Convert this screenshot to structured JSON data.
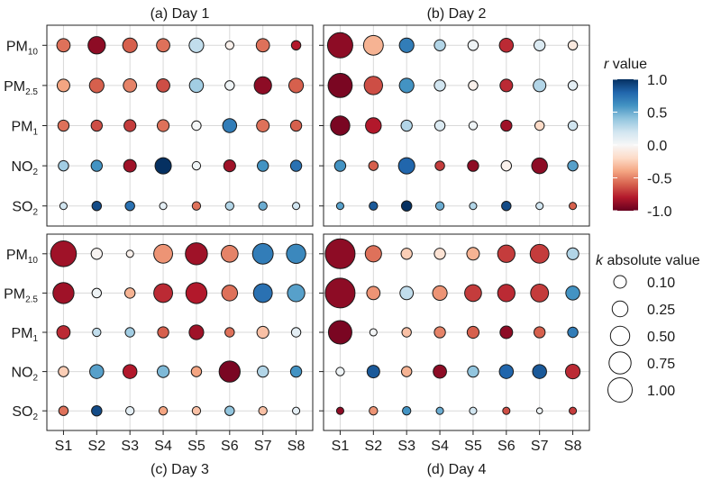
{
  "chart_data": {
    "type": "bubble-matrix",
    "rows": [
      {
        "base": "PM",
        "sub": "10"
      },
      {
        "base": "PM",
        "sub": "2.5"
      },
      {
        "base": "PM",
        "sub": "1"
      },
      {
        "base": "NO",
        "sub": "2"
      },
      {
        "base": "SO",
        "sub": "2"
      }
    ],
    "columns": [
      "S1",
      "S2",
      "S3",
      "S4",
      "S5",
      "S6",
      "S7",
      "S8"
    ],
    "panels": [
      {
        "title": "(a) Day 1",
        "r": [
          [
            -0.55,
            -0.9,
            -0.6,
            -0.55,
            0.25,
            -0.05,
            -0.55,
            -0.8
          ],
          [
            -0.4,
            -0.6,
            -0.5,
            -0.65,
            0.35,
            0.05,
            -0.9,
            -0.6
          ],
          [
            -0.55,
            -0.65,
            -0.7,
            -0.55,
            0.02,
            0.7,
            -0.55,
            -0.6
          ],
          [
            0.35,
            0.6,
            -0.85,
            1.0,
            0.05,
            -0.85,
            0.6,
            0.75
          ],
          [
            0.2,
            0.9,
            0.75,
            0.1,
            -0.55,
            0.3,
            0.5,
            0.2
          ]
        ],
        "k": [
          [
            0.2,
            0.34,
            0.24,
            0.2,
            0.24,
            0.08,
            0.2,
            0.1
          ],
          [
            0.18,
            0.24,
            0.2,
            0.2,
            0.22,
            0.1,
            0.34,
            0.24
          ],
          [
            0.14,
            0.14,
            0.16,
            0.16,
            0.1,
            0.22,
            0.18,
            0.14
          ],
          [
            0.12,
            0.14,
            0.18,
            0.3,
            0.08,
            0.16,
            0.14,
            0.14
          ],
          [
            0.06,
            0.1,
            0.1,
            0.06,
            0.08,
            0.08,
            0.08,
            0.06
          ]
        ]
      },
      {
        "title": "(b) Day 2",
        "r": [
          [
            -0.9,
            -0.35,
            0.7,
            0.3,
            0.05,
            -0.75,
            0.15,
            -0.1
          ],
          [
            -0.95,
            -0.65,
            0.6,
            0.2,
            -0.05,
            -0.75,
            0.3,
            0.1
          ],
          [
            -0.95,
            -0.8,
            0.3,
            0.15,
            0.05,
            -0.85,
            -0.2,
            0.2
          ],
          [
            0.6,
            -0.6,
            0.8,
            -0.7,
            -0.9,
            -0.05,
            -0.9,
            0.55
          ],
          [
            0.55,
            0.85,
            1.0,
            0.5,
            0.3,
            0.9,
            0.2,
            -0.6
          ]
        ],
        "k": [
          [
            0.72,
            0.44,
            0.24,
            0.14,
            0.12,
            0.22,
            0.14,
            0.1
          ],
          [
            0.66,
            0.38,
            0.24,
            0.14,
            0.1,
            0.18,
            0.18,
            0.1
          ],
          [
            0.42,
            0.28,
            0.14,
            0.12,
            0.08,
            0.14,
            0.1,
            0.1
          ],
          [
            0.14,
            0.1,
            0.3,
            0.1,
            0.14,
            0.12,
            0.28,
            0.12
          ],
          [
            0.06,
            0.08,
            0.12,
            0.08,
            0.06,
            0.1,
            0.06,
            0.06
          ]
        ]
      },
      {
        "title": "(c) Day 3",
        "r": [
          [
            -0.85,
            -0.02,
            -0.05,
            -0.45,
            -0.85,
            -0.5,
            0.7,
            0.65
          ],
          [
            -0.85,
            0.05,
            -0.35,
            -0.75,
            -0.8,
            -0.55,
            0.75,
            0.55
          ],
          [
            -0.75,
            0.25,
            0.35,
            -0.6,
            -0.85,
            -0.55,
            -0.3,
            0.1
          ],
          [
            -0.25,
            0.55,
            -0.8,
            0.45,
            -0.4,
            -0.95,
            0.3,
            0.6
          ],
          [
            -0.55,
            0.9,
            0.1,
            -0.4,
            -0.3,
            0.4,
            -0.3,
            0.1
          ]
        ],
        "k": [
          [
            0.75,
            0.14,
            0.06,
            0.4,
            0.55,
            0.32,
            0.48,
            0.42
          ],
          [
            0.5,
            0.1,
            0.12,
            0.4,
            0.5,
            0.28,
            0.4,
            0.34
          ],
          [
            0.2,
            0.08,
            0.1,
            0.14,
            0.24,
            0.1,
            0.16,
            0.1
          ],
          [
            0.12,
            0.22,
            0.22,
            0.16,
            0.12,
            0.5,
            0.14,
            0.14
          ],
          [
            0.1,
            0.12,
            0.08,
            0.08,
            0.08,
            0.1,
            0.08,
            0.06
          ]
        ]
      },
      {
        "title": "(d) Day 4",
        "r": [
          [
            -0.9,
            -0.55,
            -0.25,
            -0.15,
            -0.35,
            -0.7,
            -0.7,
            0.3
          ],
          [
            -0.9,
            -0.45,
            0.25,
            -0.45,
            -0.7,
            -0.75,
            -0.7,
            0.6
          ],
          [
            -0.95,
            0.02,
            -0.3,
            -0.5,
            -0.6,
            -0.9,
            -0.6,
            0.7
          ],
          [
            0.05,
            0.85,
            -0.35,
            -0.9,
            0.4,
            0.8,
            0.85,
            -0.75
          ],
          [
            -0.9,
            -0.45,
            0.6,
            0.5,
            0.2,
            -0.65,
            0.05,
            -0.7
          ]
        ],
        "k": [
          [
            1.0,
            0.3,
            0.14,
            0.14,
            0.18,
            0.34,
            0.4,
            0.16
          ],
          [
            1.0,
            0.2,
            0.2,
            0.24,
            0.32,
            0.34,
            0.36,
            0.22
          ],
          [
            0.62,
            0.06,
            0.1,
            0.14,
            0.16,
            0.18,
            0.14,
            0.12
          ],
          [
            0.08,
            0.18,
            0.12,
            0.2,
            0.14,
            0.22,
            0.22,
            0.24
          ],
          [
            0.06,
            0.08,
            0.08,
            0.06,
            0.06,
            0.06,
            0.04,
            0.06
          ]
        ]
      }
    ],
    "color_legend": {
      "title_italic": "r",
      "title_rest": " value",
      "ticks": [
        "1.0",
        "0.5",
        "0.0",
        "-0.5",
        "-1.0"
      ],
      "tick_values": [
        1.0,
        0.5,
        0.0,
        -0.5,
        -1.0
      ],
      "range": [
        -1.0,
        1.0
      ],
      "colormap": [
        "#67001f",
        "#b2182b",
        "#d6604d",
        "#f4a582",
        "#fddbc7",
        "#f7f7f7",
        "#d1e5f0",
        "#92c5de",
        "#4393c3",
        "#2166ac",
        "#053061"
      ]
    },
    "size_legend": {
      "title_italic": "k",
      "title_rest": " absolute value",
      "labels": [
        "0.10",
        "0.25",
        "0.50",
        "0.75",
        "1.00"
      ],
      "values": [
        0.1,
        0.25,
        0.5,
        0.75,
        1.0
      ]
    },
    "grid": true
  }
}
